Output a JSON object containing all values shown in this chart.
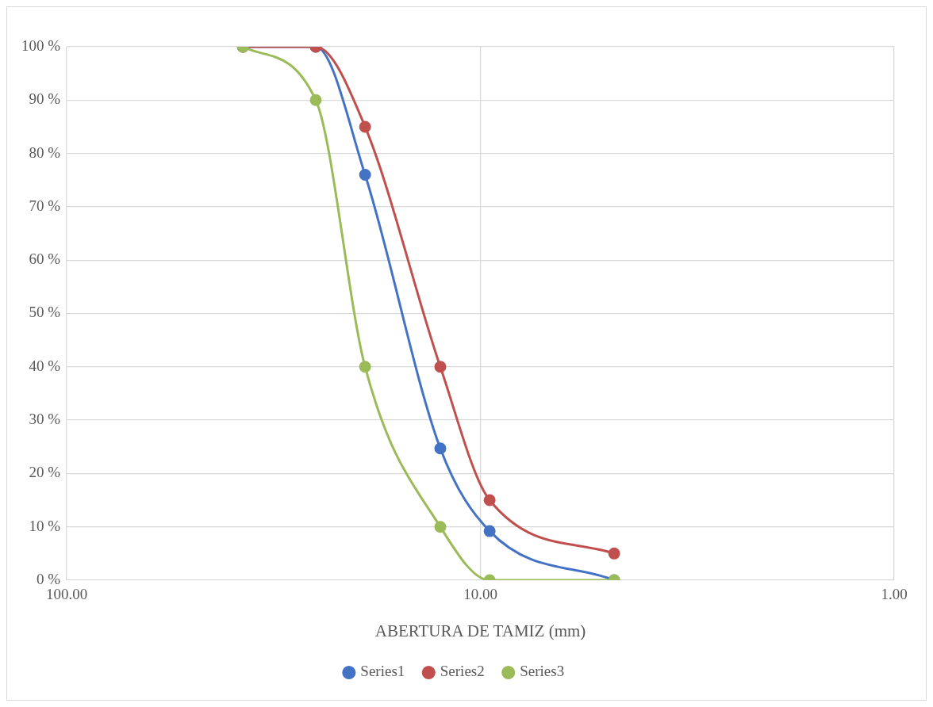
{
  "chart_data": {
    "type": "line",
    "xlabel": "ABERTURA DE TAMIZ (mm)",
    "x": [
      37.5,
      25,
      19,
      12.5,
      9.5,
      4.75
    ],
    "series": [
      {
        "name": "Series1",
        "color": "#4472c4",
        "values": [
          100,
          100,
          76,
          24.7,
          9.2,
          0
        ]
      },
      {
        "name": "Series2",
        "color": "#c0504d",
        "values": [
          100,
          100,
          85,
          40,
          15,
          5
        ]
      },
      {
        "name": "Series3",
        "color": "#9bbb59",
        "values": [
          100,
          90,
          40,
          10,
          0,
          0
        ]
      }
    ],
    "log": "x",
    "xlim": [
      100,
      1
    ],
    "xticks": [
      {
        "value": 100,
        "label": "100.00"
      },
      {
        "value": 10,
        "label": "10.00"
      },
      {
        "value": 1,
        "label": "1.00"
      }
    ],
    "ylim": [
      0,
      100
    ],
    "yticks": [
      {
        "value": 0,
        "label": "0 %"
      },
      {
        "value": 10,
        "label": "10 %"
      },
      {
        "value": 20,
        "label": "20 %"
      },
      {
        "value": 30,
        "label": "30 %"
      },
      {
        "value": 40,
        "label": "40 %"
      },
      {
        "value": 50,
        "label": "50 %"
      },
      {
        "value": 60,
        "label": "60 %"
      },
      {
        "value": 70,
        "label": "70 %"
      },
      {
        "value": 80,
        "label": "80 %"
      },
      {
        "value": 90,
        "label": "90 %"
      },
      {
        "value": 100,
        "label": "100 %"
      }
    ],
    "grid": true,
    "legend": "bottom",
    "marker": "circle",
    "line_style": "solid"
  }
}
